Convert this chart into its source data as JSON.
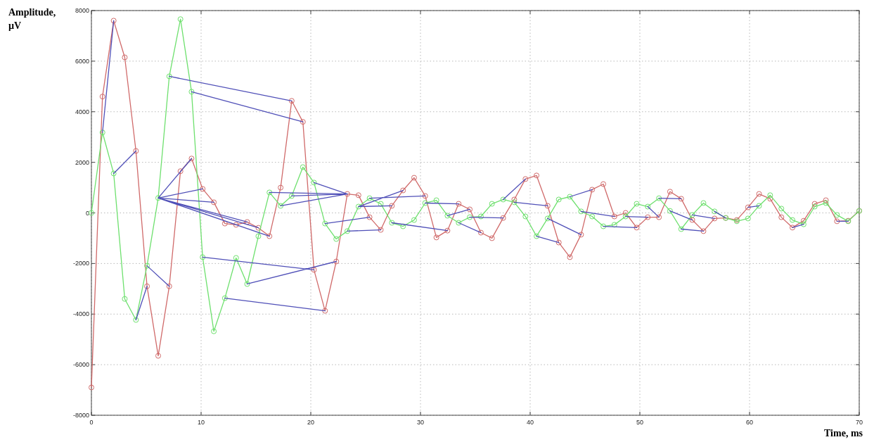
{
  "chart_data": {
    "type": "line",
    "xlabel": "Time, ms",
    "ylabel": "Amplitude, µV",
    "xlim": [
      0,
      70
    ],
    "ylim": [
      -8000,
      8000
    ],
    "xticks": [
      0,
      10,
      20,
      30,
      40,
      50,
      60,
      70
    ],
    "yticks": [
      -8000,
      -6000,
      -4000,
      -2000,
      0,
      2000,
      4000,
      6000,
      8000
    ],
    "grid": true,
    "marker": "circle",
    "line_style": "solid",
    "x": [
      0,
      1.01,
      2.03,
      3.04,
      4.06,
      5.07,
      6.09,
      7.1,
      8.12,
      9.13,
      10.14,
      11.16,
      12.17,
      13.19,
      14.2,
      15.22,
      16.23,
      17.25,
      18.26,
      19.28,
      20.29,
      21.3,
      22.32,
      23.33,
      24.35,
      25.36,
      26.38,
      27.39,
      28.41,
      29.42,
      30.43,
      31.45,
      32.46,
      33.48,
      34.49,
      35.51,
      36.52,
      37.54,
      38.55,
      39.57,
      40.58,
      41.59,
      42.61,
      43.62,
      44.64,
      45.65,
      46.67,
      47.68,
      48.7,
      49.71,
      50.72,
      51.74,
      52.75,
      53.77,
      54.78,
      55.8,
      56.81,
      57.83,
      58.84,
      59.86,
      60.87,
      61.88,
      62.9,
      63.91,
      64.93,
      65.94,
      66.96,
      67.97,
      68.99,
      70
    ],
    "series": [
      {
        "color": "#d06a6a",
        "values": [
          -6900,
          4600,
          7600,
          6150,
          2450,
          -2900,
          -5650,
          -2900,
          1650,
          2150,
          950,
          420,
          -420,
          -470,
          -360,
          -590,
          -920,
          1000,
          4430,
          3600,
          -2250,
          -3870,
          -1920,
          750,
          700,
          -170,
          -670,
          280,
          890,
          1390,
          670,
          -970,
          -700,
          360,
          140,
          -780,
          -1000,
          -200,
          530,
          1340,
          1480,
          280,
          -1170,
          -1750,
          -860,
          920,
          1140,
          -140,
          0,
          -580,
          -170,
          -170,
          840,
          560,
          -280,
          -720,
          -220,
          -200,
          -280,
          220,
          750,
          560,
          -170,
          -580,
          -310,
          360,
          500,
          -330,
          -310,
          80
        ]
      },
      {
        "color": "#6ee06e",
        "values": [
          0,
          3180,
          1560,
          -3400,
          -4230,
          -2090,
          590,
          5400,
          7660,
          4790,
          -1750,
          -4680,
          -3370,
          -1780,
          -2810,
          -920,
          810,
          280,
          670,
          1810,
          1200,
          -420,
          -1030,
          -720,
          250,
          580,
          360,
          -390,
          -530,
          -280,
          390,
          500,
          -110,
          -390,
          -170,
          -140,
          360,
          530,
          420,
          -140,
          -920,
          -220,
          530,
          640,
          60,
          -140,
          -530,
          -470,
          -140,
          360,
          250,
          580,
          80,
          -640,
          -80,
          390,
          60,
          -200,
          -330,
          -220,
          280,
          700,
          170,
          -280,
          -450,
          250,
          390,
          -80,
          -330,
          80
        ]
      },
      {
        "color": "#5050b8",
        "marker": "none",
        "x": [
          1.01,
          2.03,
          null,
          2.03,
          4.06,
          null,
          4.06,
          5.07,
          null,
          5.07,
          7.1,
          null,
          6.09,
          9.13,
          null,
          6.09,
          10.14,
          null,
          6.09,
          11.16,
          null,
          6.09,
          13.19,
          null,
          6.09,
          14.2,
          null,
          6.09,
          15.22,
          null,
          6.09,
          16.23,
          null,
          7.1,
          18.26,
          null,
          9.13,
          19.28,
          null,
          10.14,
          20.29,
          null,
          12.17,
          21.3,
          null,
          14.2,
          22.32,
          null,
          16.23,
          23.33,
          null,
          17.25,
          23.33,
          null,
          18.26,
          23.33,
          null,
          20.29,
          23.33,
          null,
          21.3,
          25.36,
          null,
          23.33,
          26.38,
          null,
          24.35,
          27.39,
          null,
          24.35,
          28.41,
          null,
          25.36,
          30.43,
          null,
          27.39,
          32.46,
          null,
          30.43,
          33.48,
          null,
          32.46,
          34.49,
          null,
          33.48,
          35.51,
          null,
          34.49,
          37.54,
          null,
          37.54,
          39.57,
          null,
          38.55,
          41.59,
          null,
          40.58,
          42.61,
          null,
          41.59,
          44.64,
          null,
          43.62,
          45.65,
          null,
          44.64,
          47.68,
          null,
          46.67,
          49.71,
          null,
          48.7,
          50.72,
          null,
          50.72,
          51.74,
          null,
          51.74,
          53.77,
          null,
          52.75,
          54.78,
          null,
          53.77,
          55.8,
          null,
          54.78,
          56.81,
          null,
          56.81,
          57.83,
          null,
          59.86,
          60.87,
          null,
          63.91,
          64.93,
          null,
          67.97,
          68.99
        ],
        "values": [
          3180,
          7600,
          null,
          1560,
          2450,
          null,
          -4230,
          -2900,
          null,
          -2090,
          -2900,
          null,
          590,
          2150,
          null,
          590,
          950,
          null,
          590,
          420,
          null,
          590,
          -470,
          null,
          590,
          -360,
          null,
          590,
          -590,
          null,
          590,
          -920,
          null,
          5400,
          4430,
          null,
          4790,
          3600,
          null,
          -1750,
          -2250,
          null,
          -3370,
          -3870,
          null,
          -2810,
          -1920,
          null,
          810,
          750,
          null,
          280,
          750,
          null,
          670,
          750,
          null,
          1200,
          750,
          null,
          -420,
          -170,
          null,
          -720,
          -670,
          null,
          250,
          280,
          null,
          250,
          890,
          null,
          580,
          670,
          null,
          -390,
          -700,
          null,
          390,
          360,
          null,
          -110,
          140,
          null,
          -390,
          -780,
          null,
          -170,
          -200,
          null,
          530,
          1340,
          null,
          420,
          280,
          null,
          -920,
          -1170,
          null,
          -220,
          -860,
          null,
          640,
          920,
          null,
          60,
          -140,
          null,
          -530,
          -580,
          null,
          -140,
          -170,
          null,
          250,
          -170,
          null,
          580,
          560,
          null,
          80,
          -280,
          null,
          -640,
          -720,
          null,
          -80,
          -220,
          null,
          60,
          -200,
          null,
          220,
          280,
          null,
          -580,
          -450,
          null,
          -330,
          -330
        ]
      }
    ]
  }
}
